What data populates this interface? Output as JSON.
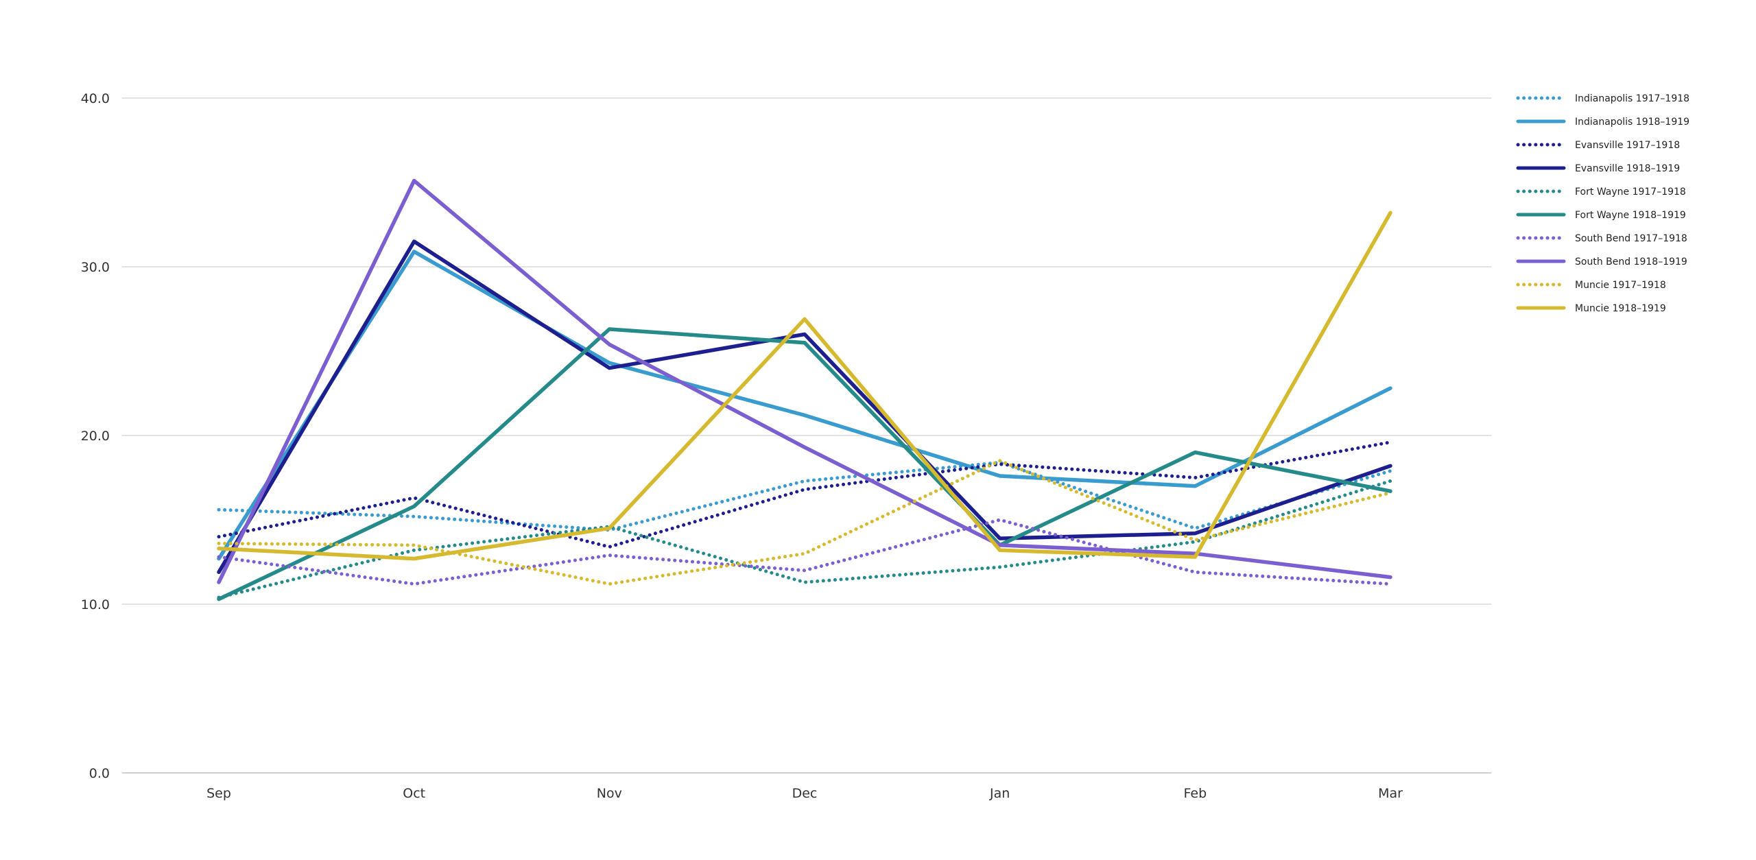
{
  "chart_data": {
    "type": "line",
    "title": "",
    "xlabel": "",
    "ylabel": "",
    "categories": [
      "Sep",
      "Oct",
      "Nov",
      "Dec",
      "Jan",
      "Feb",
      "Mar"
    ],
    "ylim": [
      0,
      40
    ],
    "yticks": [
      "0.0",
      "10.0",
      "20.0",
      "30.0",
      "40.0"
    ],
    "grid": true,
    "legend_position": "right",
    "series": [
      {
        "name": "Indianapolis 1917–1918",
        "color": "#3a9bcf",
        "style": "dotted",
        "values": [
          15.6,
          15.2,
          14.4,
          17.3,
          18.4,
          14.5,
          17.9
        ]
      },
      {
        "name": "Indianapolis 1918–1919",
        "color": "#3a9bcf",
        "style": "solid",
        "values": [
          12.7,
          30.9,
          24.3,
          21.2,
          17.6,
          17.0,
          22.8
        ]
      },
      {
        "name": "Evansville 1917–1918",
        "color": "#1e1f8f",
        "style": "dotted",
        "values": [
          14.0,
          16.3,
          13.4,
          16.8,
          18.3,
          17.5,
          19.6
        ]
      },
      {
        "name": "Evansville 1918–1919",
        "color": "#1e1f8f",
        "style": "solid",
        "values": [
          11.9,
          31.5,
          24.0,
          26.0,
          13.9,
          14.2,
          18.2
        ]
      },
      {
        "name": "Fort Wayne 1917–1918",
        "color": "#258a8a",
        "style": "dotted",
        "values": [
          10.4,
          13.2,
          14.6,
          11.3,
          12.2,
          13.7,
          17.3
        ]
      },
      {
        "name": "Fort Wayne 1918–1919",
        "color": "#258a8a",
        "style": "solid",
        "values": [
          10.3,
          15.8,
          26.3,
          25.5,
          13.5,
          19.0,
          16.7
        ]
      },
      {
        "name": "South Bend 1917–1918",
        "color": "#7b5fd1",
        "style": "dotted",
        "values": [
          12.8,
          11.2,
          12.9,
          12.0,
          15.0,
          11.9,
          11.2
        ]
      },
      {
        "name": "South Bend 1918–1919",
        "color": "#7b5fd1",
        "style": "solid",
        "values": [
          11.3,
          35.1,
          25.4,
          19.3,
          13.5,
          13.0,
          11.6
        ]
      },
      {
        "name": "Muncie 1917–1918",
        "color": "#d5b92e",
        "style": "dotted",
        "values": [
          13.6,
          13.5,
          11.2,
          13.0,
          18.5,
          13.8,
          16.6
        ]
      },
      {
        "name": "Muncie 1918–1919",
        "color": "#d5b92e",
        "style": "solid",
        "values": [
          13.3,
          12.7,
          14.5,
          26.9,
          13.2,
          12.8,
          33.2
        ]
      }
    ]
  }
}
